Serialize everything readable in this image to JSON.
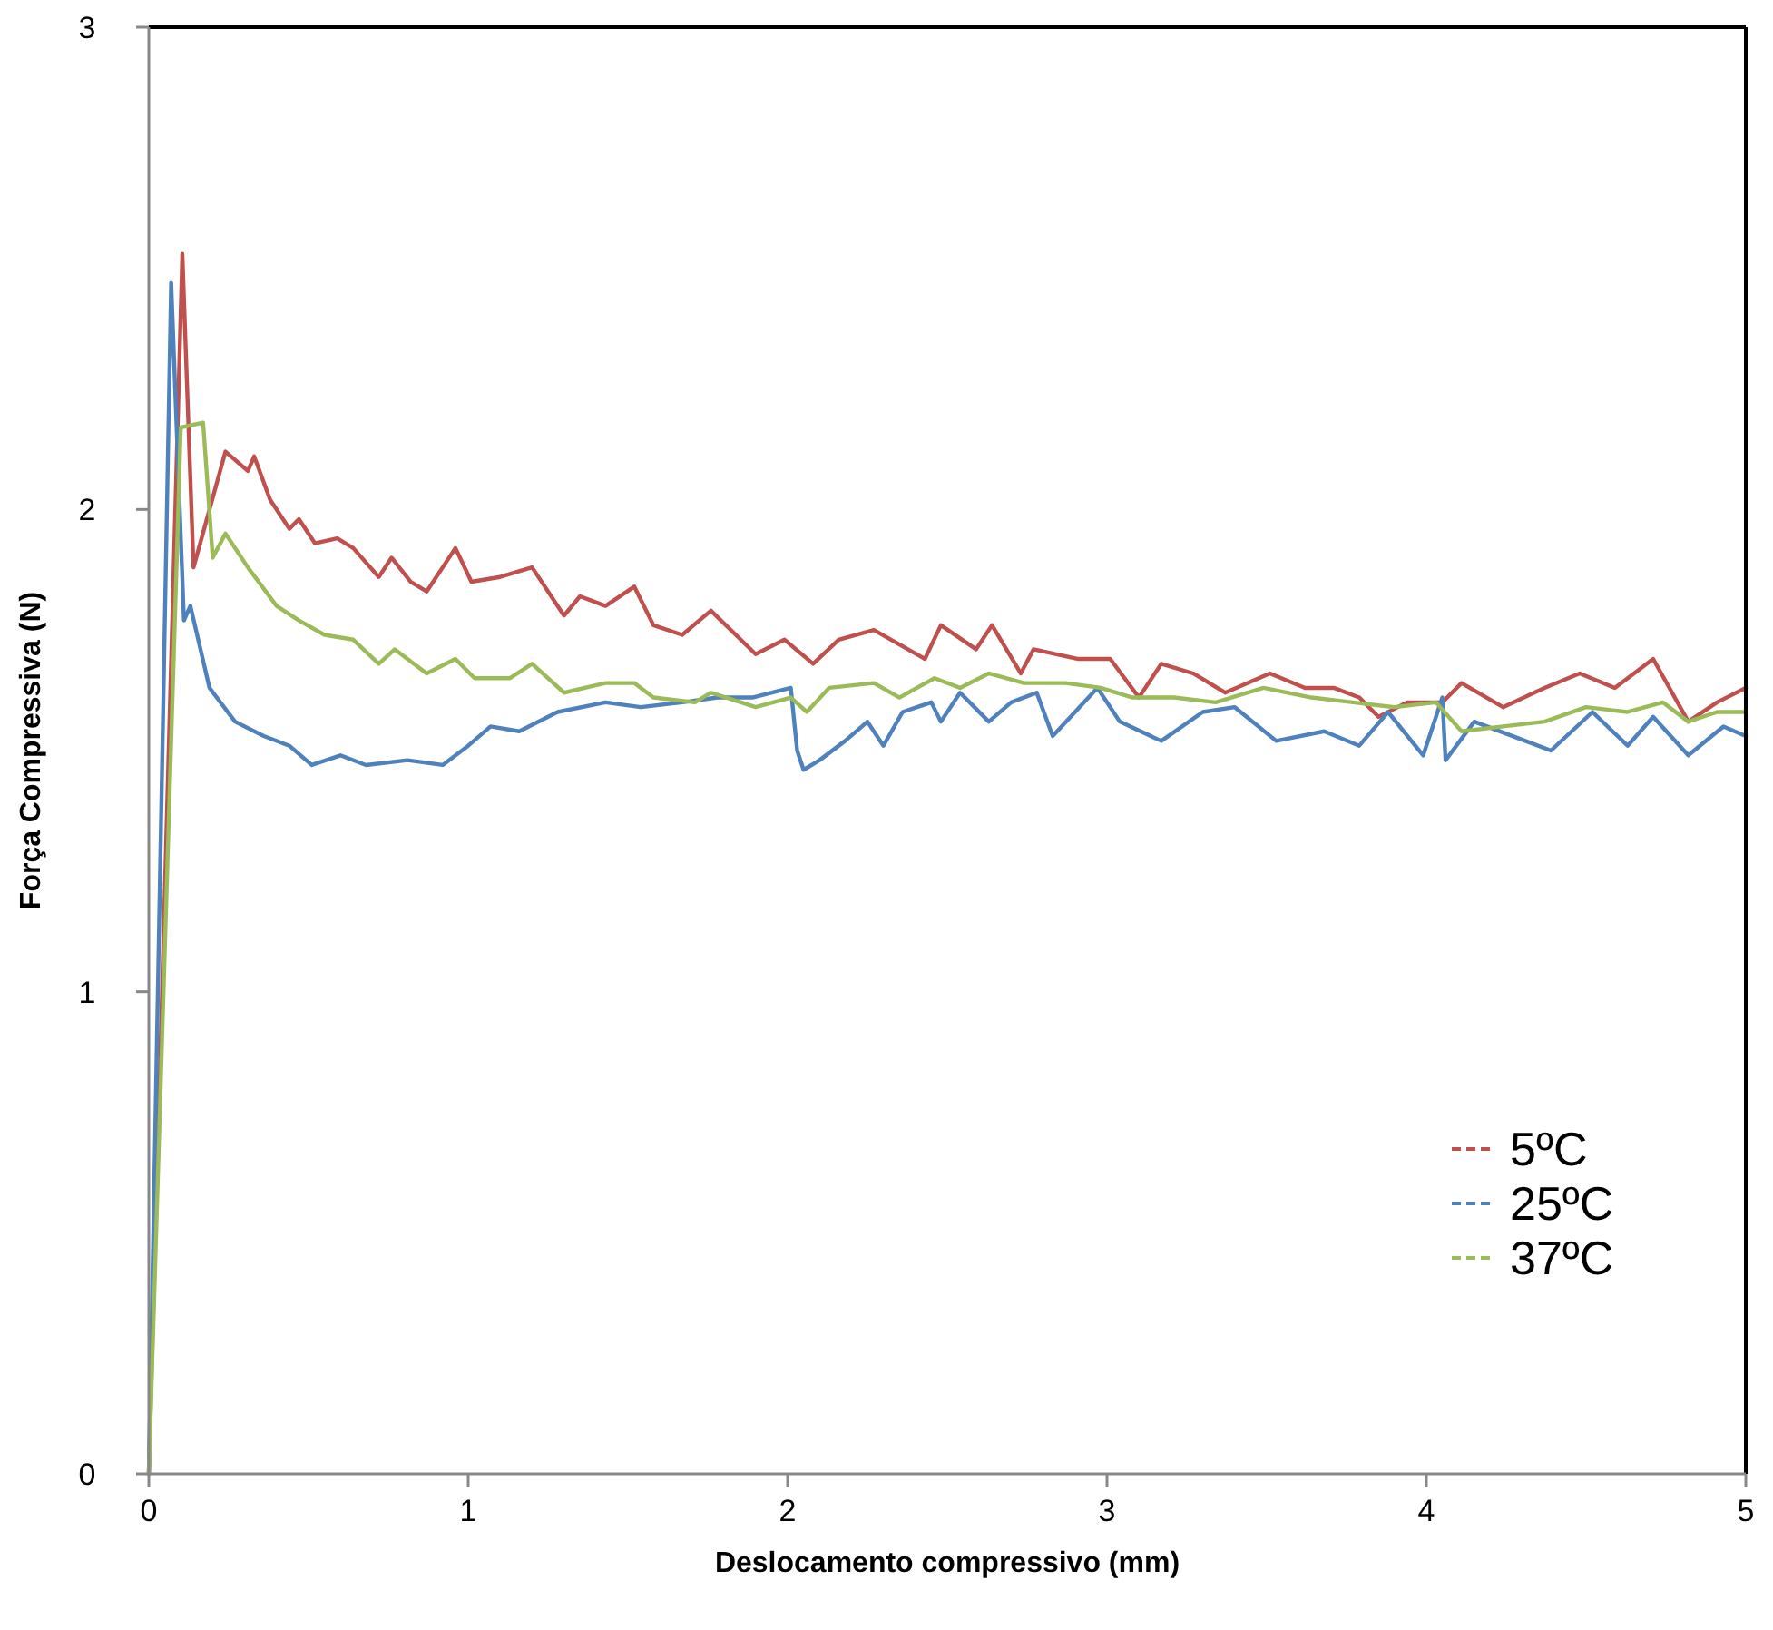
{
  "chart_data": {
    "type": "line",
    "xlabel": "Deslocamento compressivo (mm)",
    "ylabel": "Força Compressiva (N)",
    "xlim": [
      0,
      5
    ],
    "ylim": [
      0,
      3
    ],
    "xticks": [
      0,
      1,
      2,
      3,
      4,
      5
    ],
    "yticks": [
      0,
      1,
      2,
      3
    ],
    "grid": false,
    "legend": "bottom right",
    "line_style": "solid",
    "marker": "none",
    "series": [
      {
        "name": "5ºC",
        "color": "#c0504d",
        "x": [
          0,
          0.105,
          0.14,
          0.24,
          0.31,
          0.33,
          0.38,
          0.44,
          0.47,
          0.52,
          0.59,
          0.64,
          0.72,
          0.76,
          0.82,
          0.87,
          0.96,
          1.01,
          1.1,
          1.2,
          1.3,
          1.35,
          1.43,
          1.52,
          1.58,
          1.67,
          1.76,
          1.9,
          1.99,
          2.08,
          2.16,
          2.27,
          2.43,
          2.48,
          2.59,
          2.64,
          2.73,
          2.77,
          2.91,
          3.01,
          3.1,
          3.17,
          3.27,
          3.37,
          3.51,
          3.62,
          3.71,
          3.79,
          3.85,
          3.94,
          4.05,
          4.11,
          4.24,
          4.37,
          4.48,
          4.59,
          4.71,
          4.82,
          4.91,
          5.0
        ],
        "values": [
          0,
          2.53,
          1.88,
          2.12,
          2.08,
          2.11,
          2.02,
          1.96,
          1.98,
          1.93,
          1.94,
          1.92,
          1.86,
          1.9,
          1.85,
          1.83,
          1.92,
          1.85,
          1.86,
          1.88,
          1.78,
          1.82,
          1.8,
          1.84,
          1.76,
          1.74,
          1.79,
          1.7,
          1.73,
          1.68,
          1.73,
          1.75,
          1.69,
          1.76,
          1.71,
          1.76,
          1.66,
          1.71,
          1.69,
          1.69,
          1.61,
          1.68,
          1.66,
          1.62,
          1.66,
          1.63,
          1.63,
          1.61,
          1.57,
          1.6,
          1.6,
          1.64,
          1.59,
          1.63,
          1.66,
          1.63,
          1.69,
          1.56,
          1.6,
          1.63
        ]
      },
      {
        "name": "25ºC",
        "color": "#4f81bd",
        "x": [
          0,
          0.07,
          0.11,
          0.13,
          0.19,
          0.27,
          0.36,
          0.44,
          0.51,
          0.6,
          0.68,
          0.81,
          0.92,
          1.0,
          1.07,
          1.16,
          1.28,
          1.43,
          1.54,
          1.67,
          1.78,
          1.89,
          2.01,
          2.03,
          2.05,
          2.1,
          2.18,
          2.25,
          2.3,
          2.36,
          2.45,
          2.48,
          2.54,
          2.63,
          2.7,
          2.78,
          2.83,
          2.97,
          3.04,
          3.17,
          3.3,
          3.4,
          3.53,
          3.68,
          3.79,
          3.88,
          3.99,
          4.05,
          4.06,
          4.15,
          4.31,
          4.39,
          4.52,
          4.63,
          4.71,
          4.82,
          4.93,
          5.0
        ],
        "values": [
          0,
          2.47,
          1.77,
          1.8,
          1.63,
          1.56,
          1.53,
          1.51,
          1.47,
          1.49,
          1.47,
          1.48,
          1.47,
          1.51,
          1.55,
          1.54,
          1.58,
          1.6,
          1.59,
          1.6,
          1.61,
          1.61,
          1.63,
          1.5,
          1.46,
          1.48,
          1.52,
          1.56,
          1.51,
          1.58,
          1.6,
          1.56,
          1.62,
          1.56,
          1.6,
          1.62,
          1.53,
          1.63,
          1.56,
          1.52,
          1.58,
          1.59,
          1.52,
          1.54,
          1.51,
          1.58,
          1.49,
          1.61,
          1.48,
          1.56,
          1.52,
          1.5,
          1.58,
          1.51,
          1.57,
          1.49,
          1.55,
          1.53
        ]
      },
      {
        "name": "37ºC",
        "color": "#9bbb59",
        "x": [
          0,
          0.1,
          0.17,
          0.2,
          0.24,
          0.31,
          0.4,
          0.47,
          0.55,
          0.64,
          0.72,
          0.77,
          0.87,
          0.96,
          1.02,
          1.13,
          1.2,
          1.3,
          1.43,
          1.52,
          1.58,
          1.71,
          1.76,
          1.9,
          2.01,
          2.06,
          2.13,
          2.27,
          2.35,
          2.46,
          2.54,
          2.63,
          2.74,
          2.87,
          2.98,
          3.08,
          3.21,
          3.34,
          3.49,
          3.64,
          3.77,
          3.9,
          4.03,
          4.11,
          4.24,
          4.37,
          4.5,
          4.63,
          4.74,
          4.82,
          4.91,
          5.0
        ],
        "values": [
          0,
          2.17,
          2.18,
          1.9,
          1.95,
          1.88,
          1.8,
          1.77,
          1.74,
          1.73,
          1.68,
          1.71,
          1.66,
          1.69,
          1.65,
          1.65,
          1.68,
          1.62,
          1.64,
          1.64,
          1.61,
          1.6,
          1.62,
          1.59,
          1.61,
          1.58,
          1.63,
          1.64,
          1.61,
          1.65,
          1.63,
          1.66,
          1.64,
          1.64,
          1.63,
          1.61,
          1.61,
          1.6,
          1.63,
          1.61,
          1.6,
          1.59,
          1.6,
          1.54,
          1.55,
          1.56,
          1.59,
          1.58,
          1.6,
          1.56,
          1.58,
          1.58
        ]
      }
    ]
  }
}
